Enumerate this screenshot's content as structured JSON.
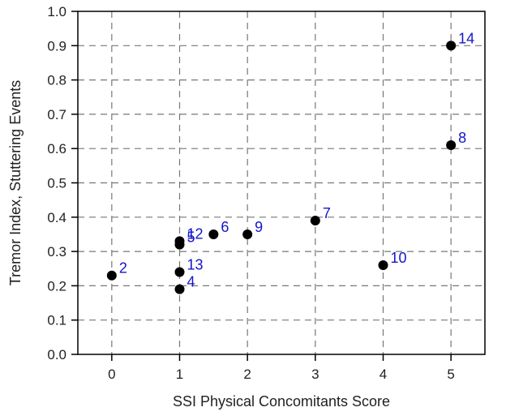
{
  "chart_data": {
    "type": "scatter",
    "title": "",
    "xlabel": "SSI Physical Concomitants Score",
    "ylabel": "Tremor Index, Stuttering Events",
    "xlim": [
      -0.5,
      5.5
    ],
    "ylim": [
      0.0,
      1.0
    ],
    "xticks": [
      0,
      1,
      2,
      3,
      4,
      5
    ],
    "yticks": [
      0.0,
      0.1,
      0.2,
      0.3,
      0.4,
      0.5,
      0.6,
      0.7,
      0.8,
      0.9,
      1.0
    ],
    "xtick_labels": [
      "0",
      "1",
      "2",
      "3",
      "4",
      "5"
    ],
    "ytick_labels": [
      "0.0",
      "0.1",
      "0.2",
      "0.3",
      "0.4",
      "0.5",
      "0.6",
      "0.7",
      "0.8",
      "0.9",
      "1.0"
    ],
    "grid": true,
    "grid_style": "dashed",
    "marker_color": "#000000",
    "label_color": "#1414cc",
    "points": [
      {
        "label": "2",
        "x": 0,
        "y": 0.23
      },
      {
        "label": "12",
        "x": 1,
        "y": 0.33
      },
      {
        "label": "5",
        "x": 1,
        "y": 0.32
      },
      {
        "label": "13",
        "x": 1,
        "y": 0.24
      },
      {
        "label": "4",
        "x": 1,
        "y": 0.19
      },
      {
        "label": "6",
        "x": 1.5,
        "y": 0.35
      },
      {
        "label": "9",
        "x": 2,
        "y": 0.35
      },
      {
        "label": "7",
        "x": 3,
        "y": 0.39
      },
      {
        "label": "10",
        "x": 4,
        "y": 0.26
      },
      {
        "label": "8",
        "x": 5,
        "y": 0.61
      },
      {
        "label": "14",
        "x": 5,
        "y": 0.9
      }
    ]
  }
}
